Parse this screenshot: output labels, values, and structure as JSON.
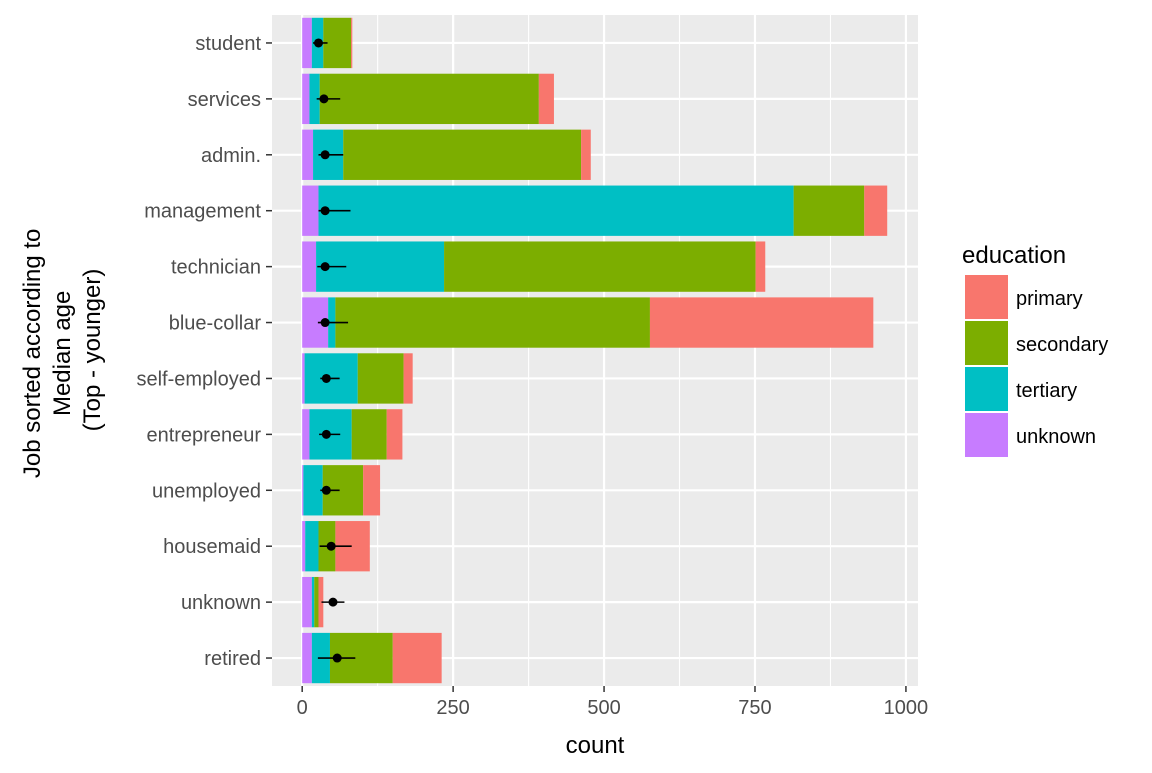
{
  "chart_data": {
    "type": "bar",
    "orientation": "horizontal",
    "stacked": true,
    "categories": [
      "student",
      "services",
      "admin.",
      "management",
      "technician",
      "blue-collar",
      "self-employed",
      "entrepreneur",
      "unemployed",
      "housemaid",
      "unknown",
      "retired"
    ],
    "series": [
      {
        "name": "unknown",
        "color": "#C77CFF",
        "values": [
          16,
          12,
          18,
          27,
          23,
          43,
          4,
          12,
          2,
          5,
          16,
          16
        ]
      },
      {
        "name": "tertiary",
        "color": "#00BFC4",
        "values": [
          19,
          17,
          50,
          787,
          212,
          12,
          88,
          70,
          32,
          22,
          4,
          30
        ]
      },
      {
        "name": "secondary",
        "color": "#7CAE00",
        "values": [
          46,
          363,
          394,
          117,
          516,
          521,
          76,
          58,
          67,
          28,
          7,
          104
        ]
      },
      {
        "name": "primary",
        "color": "#F8766D",
        "values": [
          2,
          25,
          16,
          38,
          16,
          370,
          15,
          26,
          28,
          57,
          8,
          81
        ]
      }
    ],
    "points": {
      "median": [
        27,
        36,
        38,
        38,
        38,
        38,
        40,
        40,
        40,
        48,
        51,
        58
      ],
      "error_lo": [
        18,
        24,
        27,
        27,
        25,
        26,
        30,
        28,
        30,
        29,
        32,
        26
      ],
      "error_hi": [
        42,
        63,
        68,
        80,
        73,
        76,
        62,
        63,
        62,
        82,
        70,
        88
      ]
    },
    "xlabel": "count",
    "ylabel_lines": [
      "Job sorted according to",
      "Median age",
      "(Top - younger)"
    ],
    "xlim": [
      -50,
      1020
    ],
    "xticks": [
      "0",
      "250",
      "500",
      "750",
      "1000"
    ],
    "xtick_values": [
      0,
      250,
      500,
      750,
      1000
    ],
    "grid": true,
    "legend": {
      "title": "education",
      "position": "right",
      "items": [
        {
          "label": "primary",
          "color": "#F8766D"
        },
        {
          "label": "secondary",
          "color": "#7CAE00"
        },
        {
          "label": "tertiary",
          "color": "#00BFC4"
        },
        {
          "label": "unknown",
          "color": "#C77CFF"
        }
      ]
    },
    "panel_background": "#EBEBEB",
    "grid_color": "#FFFFFF"
  }
}
